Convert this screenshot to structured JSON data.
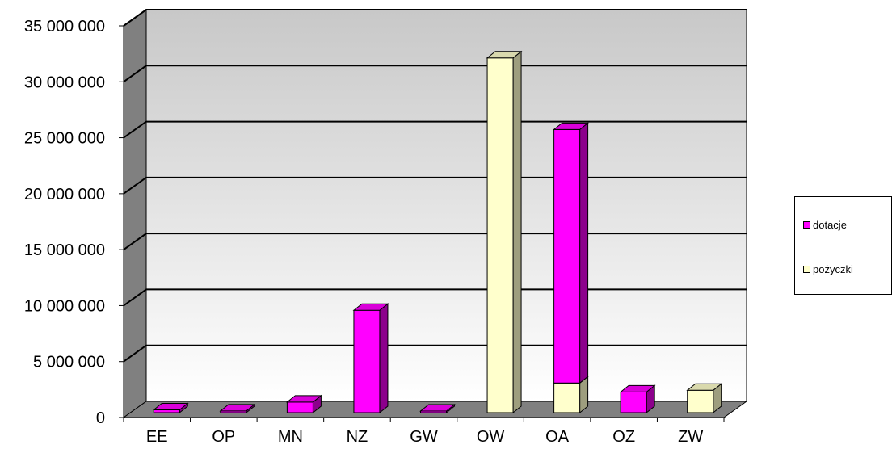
{
  "chart_data": {
    "type": "bar",
    "stacked": true,
    "three_d": true,
    "categories": [
      "EE",
      "OP",
      "MN",
      "NZ",
      "GW",
      "OW",
      "OA",
      "OZ",
      "ZW"
    ],
    "series": [
      {
        "name": "pożyczki",
        "color": "#ffffcc",
        "values": [
          0,
          0,
          0,
          0,
          0,
          31700000,
          2650000,
          0,
          2000000
        ]
      },
      {
        "name": "dotacje",
        "color": "#ff00ff",
        "values": [
          250000,
          150000,
          950000,
          9150000,
          30000,
          0,
          22650000,
          1850000,
          0
        ]
      }
    ],
    "title": "",
    "xlabel": "",
    "ylabel": "",
    "ylim": [
      0,
      35000000
    ],
    "yticks": [
      0,
      5000000,
      10000000,
      15000000,
      20000000,
      25000000,
      30000000,
      35000000
    ],
    "ytick_labels": [
      "0",
      "5 000 000",
      "10 000 000",
      "15 000 000",
      "20 000 000",
      "25 000 000",
      "30 000 000",
      "35 000 000"
    ],
    "grid": true,
    "legend_position": "right",
    "legend_order": [
      "dotacje",
      "pożyczki"
    ]
  }
}
